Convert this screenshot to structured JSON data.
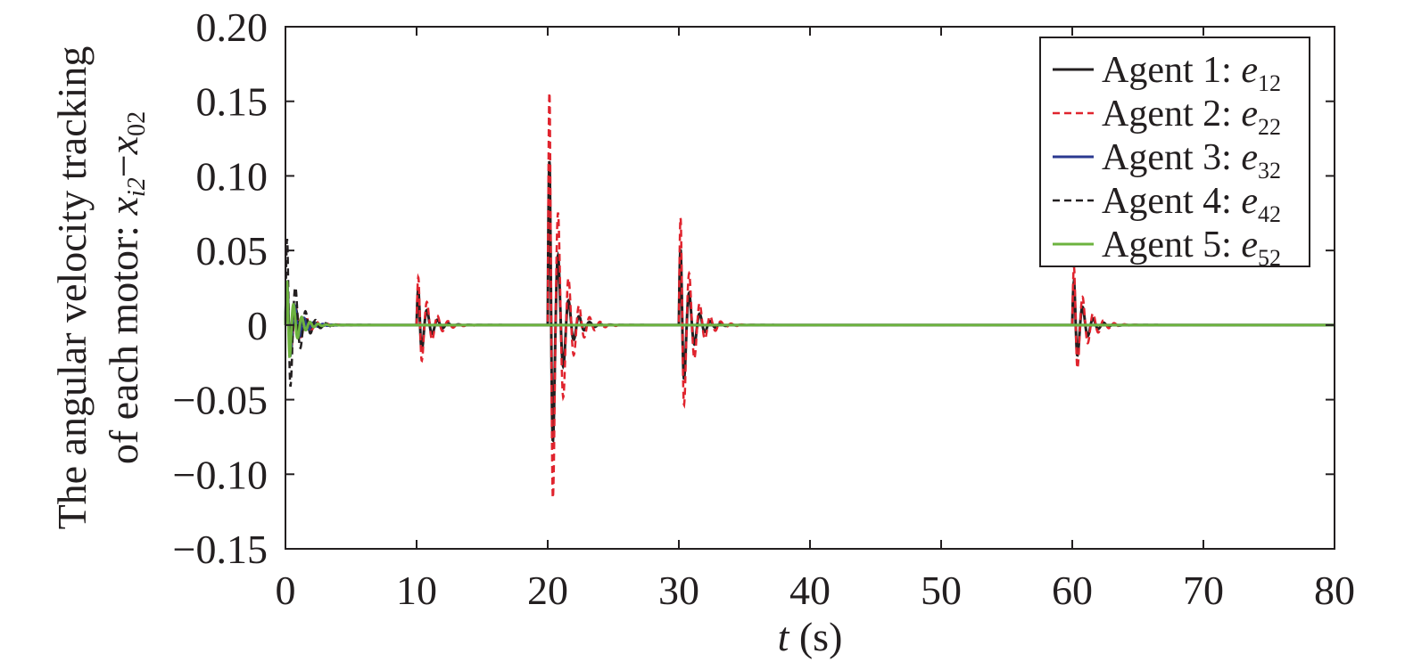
{
  "chart_data": {
    "type": "line",
    "title": "",
    "xlabel": {
      "var": "t",
      "unit": " (s)"
    },
    "ylabel": {
      "line1": "The angular velocity tracking",
      "line2_prefix": "of each motor: ",
      "x1": "x",
      "x1_sub": "i2",
      "minus": "−",
      "x2": "x",
      "x2_sub": "02"
    },
    "xlim": [
      0,
      80
    ],
    "ylim": [
      -0.15,
      0.2
    ],
    "xticks": [
      0,
      10,
      20,
      30,
      40,
      50,
      60,
      70,
      80
    ],
    "xtick_labels": [
      "0",
      "10",
      "20",
      "30",
      "40",
      "50",
      "60",
      "70",
      "80"
    ],
    "yticks": [
      -0.15,
      -0.1,
      -0.05,
      0,
      0.05,
      0.1,
      0.15,
      0.2
    ],
    "ytick_labels": [
      "−0.15",
      "−0.10",
      "−0.05",
      "0",
      "0.05",
      "0.10",
      "0.15",
      "0.20"
    ],
    "grid": false,
    "legend_position": "top-right",
    "series": [
      {
        "name": "Agent 1: ",
        "sym": "e",
        "sub": "12",
        "color": "#231f20",
        "dash": "solid",
        "bursts": [
          {
            "t0": 0,
            "amp": 0.03,
            "freq": 1.25,
            "decay": 1.3
          },
          {
            "t0": 10,
            "amp": 0.028,
            "freq": 1.25,
            "decay": 1.3
          },
          {
            "t0": 20,
            "amp": 0.13,
            "freq": 1.25,
            "decay": 1.3
          },
          {
            "t0": 30,
            "amp": 0.06,
            "freq": 1.25,
            "decay": 1.3
          },
          {
            "t0": 60,
            "amp": 0.034,
            "freq": 1.25,
            "decay": 1.3
          }
        ]
      },
      {
        "name": "Agent 2: ",
        "sym": "e",
        "sub": "22",
        "color": "#e0242e",
        "dash": "dashed",
        "bursts": [
          {
            "t0": 0,
            "amp": 0.03,
            "freq": 1.25,
            "decay": 1.1
          },
          {
            "t0": 10,
            "amp": 0.037,
            "freq": 1.25,
            "decay": 1.1
          },
          {
            "t0": 20,
            "amp": 0.18,
            "freq": 1.25,
            "decay": 1.1
          },
          {
            "t0": 30,
            "amp": 0.083,
            "freq": 1.25,
            "decay": 1.1
          },
          {
            "t0": 60,
            "amp": 0.045,
            "freq": 1.25,
            "decay": 1.1
          }
        ]
      },
      {
        "name": "Agent 3: ",
        "sym": "e",
        "sub": "32",
        "color": "#2b3990",
        "dash": "solid",
        "bursts": [
          {
            "t0": 0,
            "amp": 0.035,
            "freq": 1.4,
            "decay": 1.4
          }
        ]
      },
      {
        "name": "Agent 4: ",
        "sym": "e",
        "sub": "42",
        "color": "#231f20",
        "dash": "dashed",
        "bursts": [
          {
            "t0": 0,
            "amp": 0.068,
            "freq": 1.3,
            "decay": 1.3
          }
        ]
      },
      {
        "name": "Agent 5: ",
        "sym": "e",
        "sub": "52",
        "color": "#6db33f",
        "dash": "solid",
        "bursts": [
          {
            "t0": 0,
            "amp": 0.035,
            "freq": 1.6,
            "decay": 1.5
          }
        ]
      }
    ]
  }
}
